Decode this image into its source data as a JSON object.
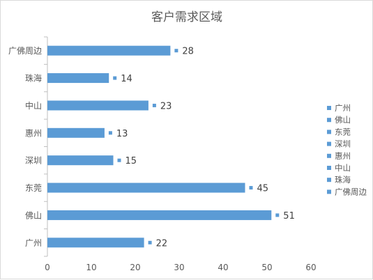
{
  "chart_data": {
    "type": "bar",
    "orientation": "horizontal",
    "title": "客户需求区域",
    "categories": [
      "广佛周边",
      "珠海",
      "中山",
      "惠州",
      "深圳",
      "东莞",
      "佛山",
      "广州"
    ],
    "values": [
      28,
      14,
      23,
      13,
      15,
      45,
      51,
      22
    ],
    "xlim": [
      0,
      60
    ],
    "xticks": [
      0,
      10,
      20,
      30,
      40,
      50,
      60
    ],
    "grid": false,
    "data_labels": true,
    "legend_position": "right",
    "legend_entries": [
      "广州",
      "佛山",
      "东莞",
      "深圳",
      "惠州",
      "中山",
      "珠海",
      "广佛周边"
    ],
    "bar_color": "#5b9bd5",
    "xlabel": "",
    "ylabel": ""
  }
}
